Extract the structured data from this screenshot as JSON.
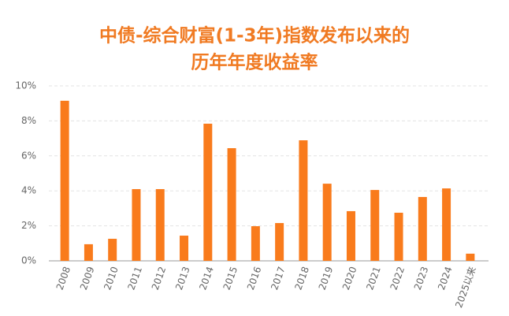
{
  "chart_data": {
    "type": "bar",
    "title": [
      "中债-综合财富(1-3年)指数发布以来的",
      "历年年度收益率"
    ],
    "categories": [
      "2008",
      "2009",
      "2010",
      "2011",
      "2012",
      "2013",
      "2014",
      "2015",
      "2016",
      "2017",
      "2018",
      "2019",
      "2020",
      "2021",
      "2022",
      "2023",
      "2024",
      "2025以来"
    ],
    "values": [
      9.15,
      0.95,
      1.26,
      4.1,
      4.1,
      1.44,
      7.84,
      6.44,
      1.98,
      2.16,
      6.89,
      4.41,
      2.84,
      4.05,
      2.75,
      3.65,
      4.14,
      0.41
    ],
    "color": "#f97b1c",
    "ylim": [
      0,
      10
    ],
    "yticks": [
      {
        "value": 0,
        "label": "0%"
      },
      {
        "value": 2,
        "label": "2%"
      },
      {
        "value": 4,
        "label": "4%"
      },
      {
        "value": 6,
        "label": "6%"
      },
      {
        "value": 8,
        "label": "8%"
      },
      {
        "value": 10,
        "label": "10%"
      }
    ],
    "grid": true
  }
}
